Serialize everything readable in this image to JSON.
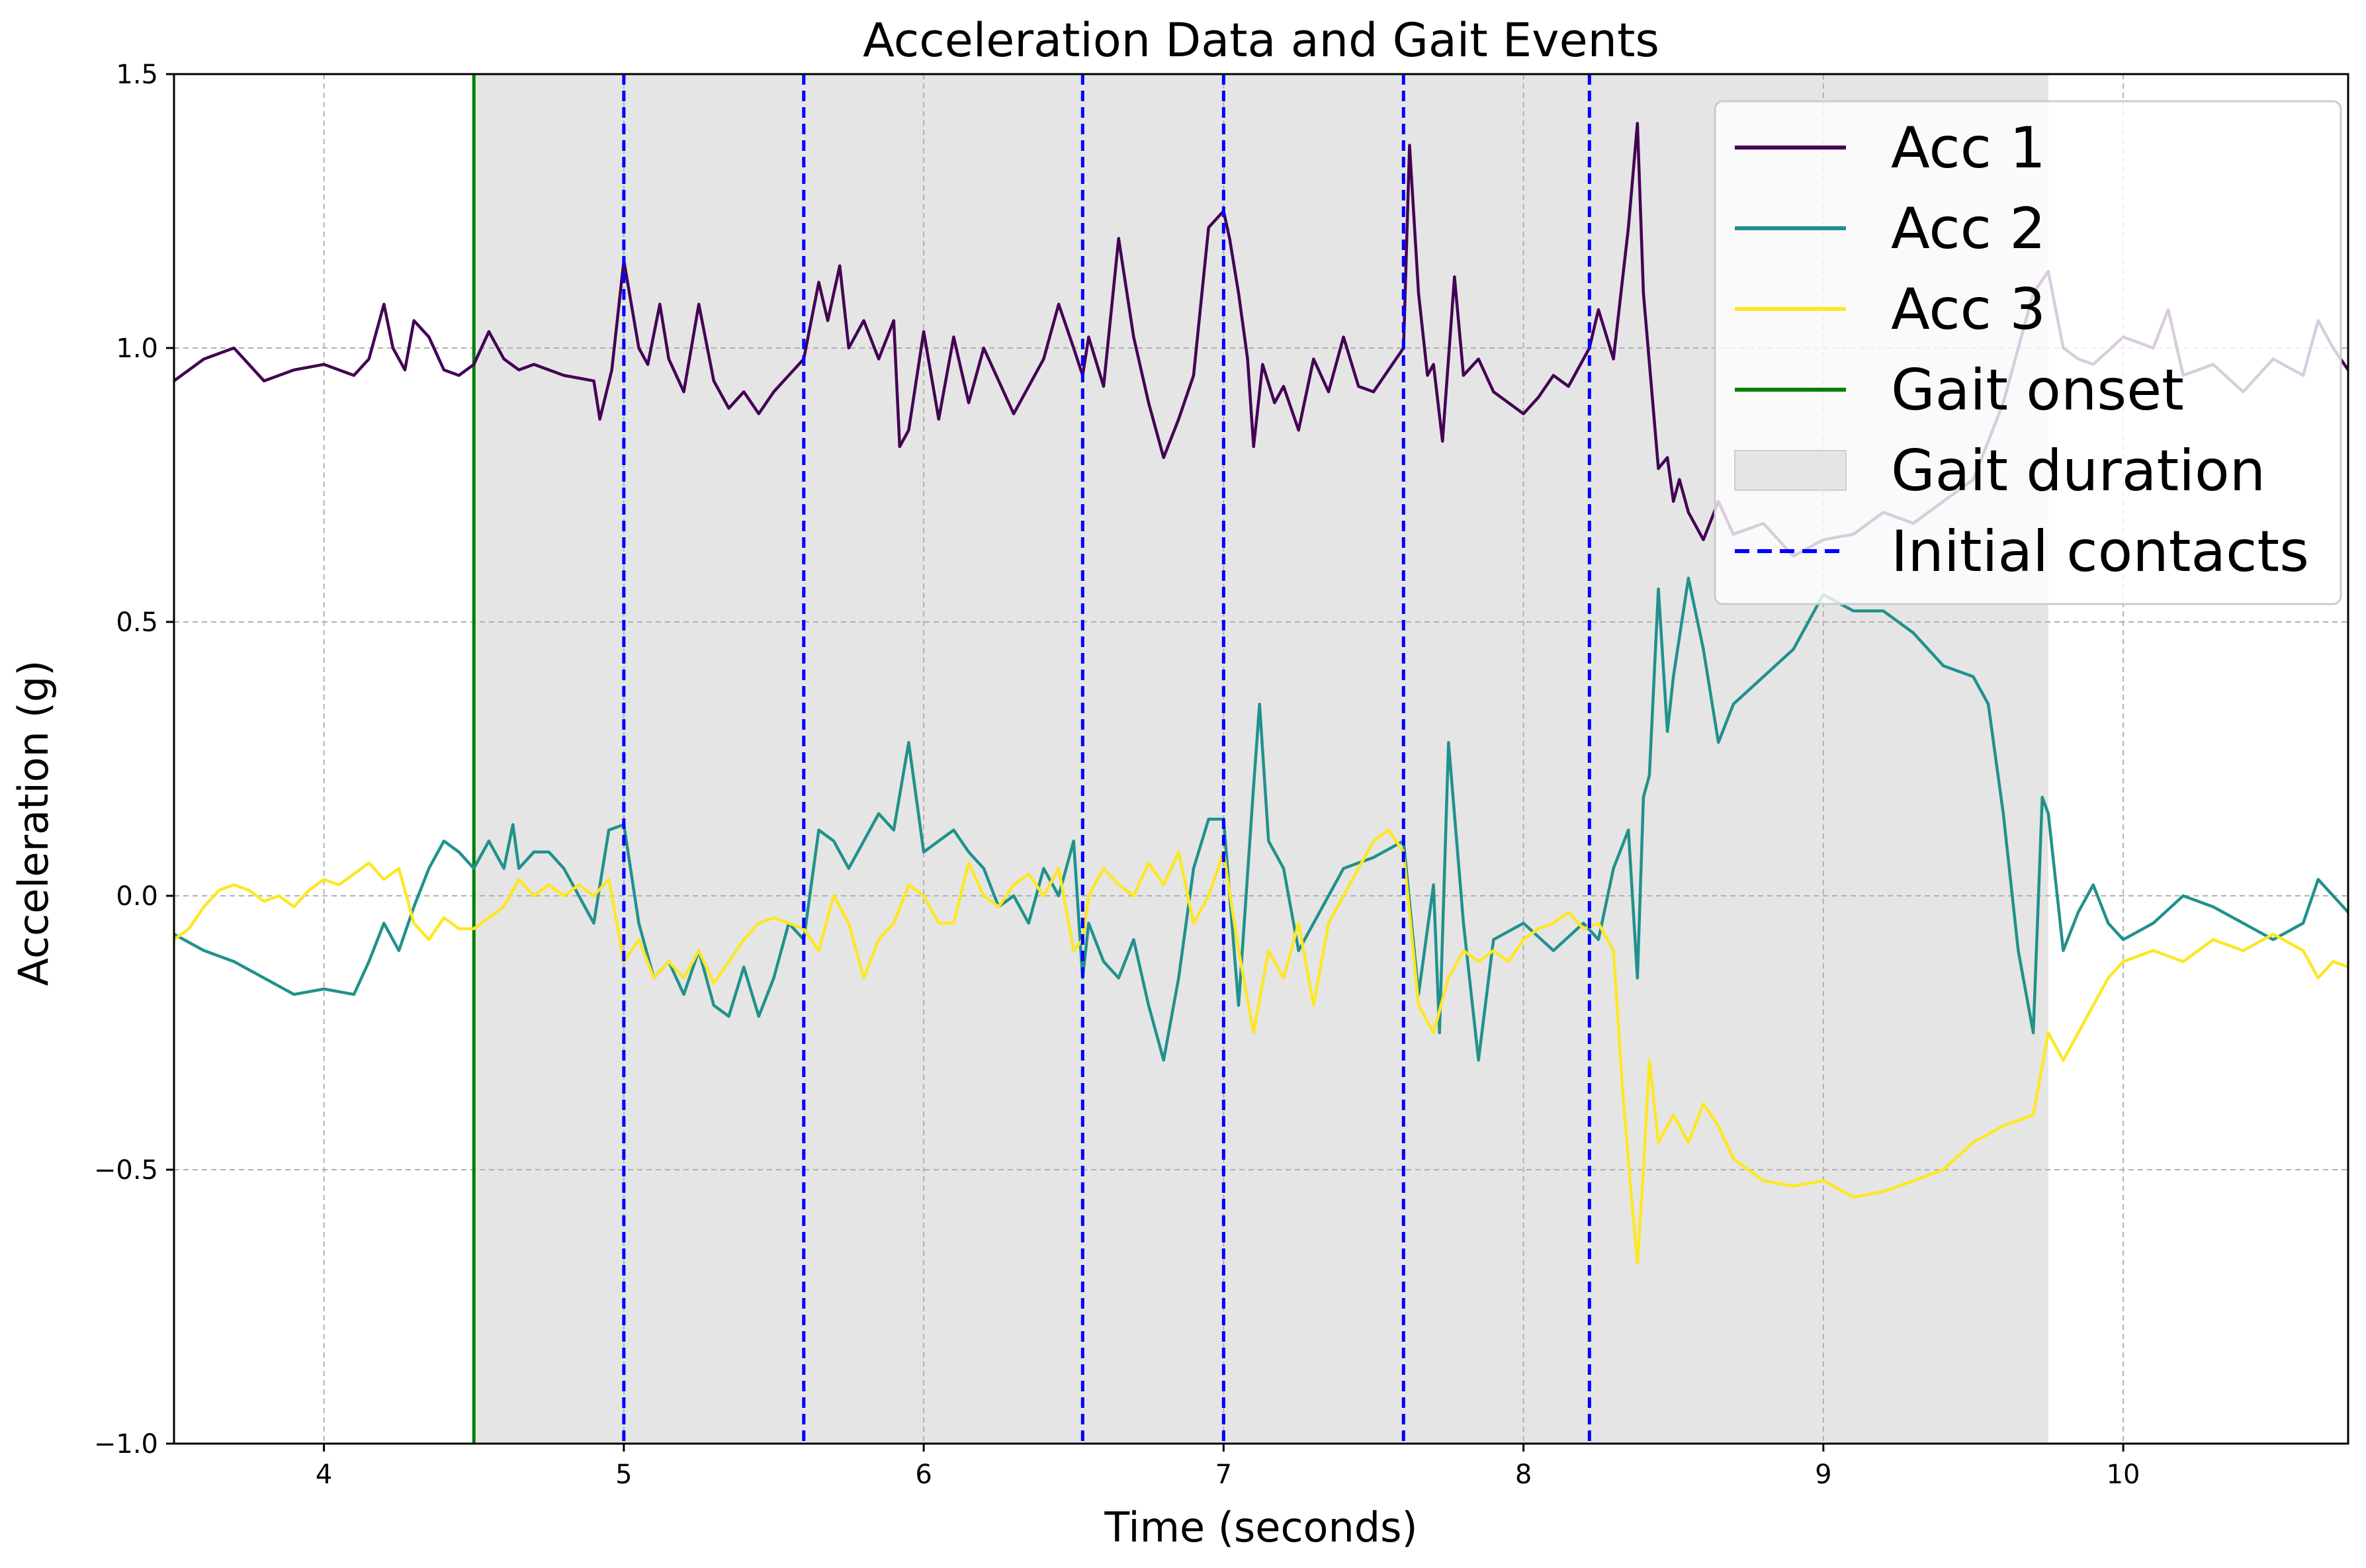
{
  "chart_data": {
    "type": "line",
    "title": "Acceleration Data and Gait Events",
    "xlabel": "Time (seconds)",
    "ylabel": "Acceleration (g)",
    "xlim": [
      3.5,
      10.75
    ],
    "ylim": [
      -1.0,
      1.5
    ],
    "xticks": [
      4,
      5,
      6,
      7,
      8,
      9,
      10
    ],
    "xtick_labels": [
      "4",
      "5",
      "6",
      "7",
      "8",
      "9",
      "10"
    ],
    "yticks": [
      -1.0,
      -0.5,
      0.0,
      0.5,
      1.0,
      1.5
    ],
    "ytick_labels": [
      "−1.0",
      "−0.5",
      "0.0",
      "0.5",
      "1.0",
      "1.5"
    ],
    "grid": true,
    "legend_position": "top-right",
    "gait_onset": 4.5,
    "gait_duration": [
      4.5,
      9.75
    ],
    "initial_contacts": [
      5.0,
      5.6,
      6.53,
      7.0,
      7.6,
      8.22
    ],
    "legend": {
      "acc1": "Acc 1",
      "acc2": "Acc 2",
      "acc3": "Acc 3",
      "onset": "Gait onset",
      "duration": "Gait duration",
      "contacts": "Initial contacts"
    },
    "colors": {
      "acc1": "#440154",
      "acc2": "#21918c",
      "acc3": "#fde725",
      "onset": "#008000",
      "contacts": "#0000ff",
      "shade": "#e5e5e5"
    },
    "series": [
      {
        "name": "Acc 1",
        "x": [
          3.5,
          3.6,
          3.7,
          3.8,
          3.9,
          4.0,
          4.1,
          4.15,
          4.2,
          4.23,
          4.27,
          4.3,
          4.35,
          4.4,
          4.45,
          4.5,
          4.55,
          4.6,
          4.65,
          4.7,
          4.8,
          4.9,
          4.92,
          4.96,
          5.0,
          5.05,
          5.08,
          5.12,
          5.15,
          5.2,
          5.25,
          5.3,
          5.35,
          5.4,
          5.45,
          5.5,
          5.55,
          5.6,
          5.65,
          5.68,
          5.72,
          5.75,
          5.8,
          5.85,
          5.9,
          5.92,
          5.95,
          6.0,
          6.05,
          6.1,
          6.15,
          6.2,
          6.3,
          6.4,
          6.45,
          6.5,
          6.53,
          6.55,
          6.6,
          6.65,
          6.7,
          6.75,
          6.8,
          6.85,
          6.9,
          6.95,
          7.0,
          7.02,
          7.05,
          7.08,
          7.1,
          7.13,
          7.17,
          7.2,
          7.25,
          7.3,
          7.35,
          7.4,
          7.45,
          7.5,
          7.6,
          7.62,
          7.65,
          7.68,
          7.7,
          7.73,
          7.77,
          7.8,
          7.85,
          7.9,
          8.0,
          8.05,
          8.1,
          8.15,
          8.22,
          8.25,
          8.3,
          8.35,
          8.38,
          8.4,
          8.45,
          8.48,
          8.5,
          8.52,
          8.55,
          8.6,
          8.65,
          8.7,
          8.8,
          8.9,
          9.0,
          9.1,
          9.2,
          9.3,
          9.4,
          9.5,
          9.6,
          9.7,
          9.75,
          9.8,
          9.85,
          9.9,
          10.0,
          10.1,
          10.15,
          10.2,
          10.3,
          10.4,
          10.5,
          10.6,
          10.65,
          10.7,
          10.75
        ],
        "y": [
          0.94,
          0.98,
          1.0,
          0.94,
          0.96,
          0.97,
          0.95,
          0.98,
          1.08,
          1.0,
          0.96,
          1.05,
          1.02,
          0.96,
          0.95,
          0.97,
          1.03,
          0.98,
          0.96,
          0.97,
          0.95,
          0.94,
          0.87,
          0.96,
          1.16,
          1.0,
          0.97,
          1.08,
          0.98,
          0.92,
          1.08,
          0.94,
          0.89,
          0.92,
          0.88,
          0.92,
          0.95,
          0.98,
          1.12,
          1.05,
          1.15,
          1.0,
          1.05,
          0.98,
          1.05,
          0.82,
          0.85,
          1.03,
          0.87,
          1.02,
          0.9,
          1.0,
          0.88,
          0.98,
          1.08,
          1.0,
          0.95,
          1.02,
          0.93,
          1.2,
          1.02,
          0.9,
          0.8,
          0.87,
          0.95,
          1.22,
          1.25,
          1.2,
          1.1,
          0.98,
          0.82,
          0.97,
          0.9,
          0.93,
          0.85,
          0.98,
          0.92,
          1.02,
          0.93,
          0.92,
          1.0,
          1.37,
          1.1,
          0.95,
          0.97,
          0.83,
          1.13,
          0.95,
          0.98,
          0.92,
          0.88,
          0.91,
          0.95,
          0.93,
          1.0,
          1.07,
          0.98,
          1.22,
          1.41,
          1.1,
          0.78,
          0.8,
          0.72,
          0.76,
          0.7,
          0.65,
          0.72,
          0.66,
          0.68,
          0.62,
          0.65,
          0.66,
          0.7,
          0.68,
          0.72,
          0.76,
          0.9,
          1.1,
          1.14,
          1.0,
          0.98,
          0.97,
          1.02,
          1.0,
          1.07,
          0.95,
          0.97,
          0.92,
          0.98,
          0.95,
          1.05,
          1.0,
          0.96
        ]
      },
      {
        "name": "Acc 2",
        "x": [
          3.5,
          3.6,
          3.7,
          3.8,
          3.9,
          4.0,
          4.1,
          4.15,
          4.2,
          4.25,
          4.3,
          4.35,
          4.4,
          4.45,
          4.5,
          4.55,
          4.6,
          4.63,
          4.65,
          4.7,
          4.75,
          4.8,
          4.85,
          4.9,
          4.95,
          5.0,
          5.05,
          5.1,
          5.15,
          5.2,
          5.25,
          5.3,
          5.35,
          5.4,
          5.45,
          5.5,
          5.55,
          5.6,
          5.65,
          5.7,
          5.75,
          5.8,
          5.85,
          5.9,
          5.95,
          6.0,
          6.05,
          6.1,
          6.15,
          6.2,
          6.25,
          6.3,
          6.35,
          6.4,
          6.45,
          6.5,
          6.53,
          6.55,
          6.6,
          6.65,
          6.7,
          6.75,
          6.8,
          6.85,
          6.9,
          6.95,
          7.0,
          7.05,
          7.1,
          7.12,
          7.15,
          7.2,
          7.25,
          7.3,
          7.35,
          7.4,
          7.45,
          7.5,
          7.6,
          7.65,
          7.7,
          7.72,
          7.75,
          7.8,
          7.85,
          7.9,
          8.0,
          8.1,
          8.2,
          8.25,
          8.3,
          8.35,
          8.38,
          8.4,
          8.42,
          8.45,
          8.48,
          8.5,
          8.55,
          8.6,
          8.65,
          8.7,
          8.8,
          8.9,
          9.0,
          9.1,
          9.2,
          9.3,
          9.4,
          9.5,
          9.55,
          9.6,
          9.65,
          9.7,
          9.73,
          9.75,
          9.8,
          9.85,
          9.9,
          9.95,
          10.0,
          10.1,
          10.2,
          10.3,
          10.4,
          10.5,
          10.6,
          10.65,
          10.7,
          10.75
        ],
        "y": [
          -0.07,
          -0.1,
          -0.12,
          -0.15,
          -0.18,
          -0.17,
          -0.18,
          -0.12,
          -0.05,
          -0.1,
          -0.02,
          0.05,
          0.1,
          0.08,
          0.05,
          0.1,
          0.05,
          0.13,
          0.05,
          0.08,
          0.08,
          0.05,
          0.0,
          -0.05,
          0.12,
          0.13,
          -0.05,
          -0.15,
          -0.12,
          -0.18,
          -0.1,
          -0.2,
          -0.22,
          -0.13,
          -0.22,
          -0.15,
          -0.05,
          -0.08,
          0.12,
          0.1,
          0.05,
          0.1,
          0.15,
          0.12,
          0.28,
          0.08,
          0.1,
          0.12,
          0.08,
          0.05,
          -0.02,
          0.0,
          -0.05,
          0.05,
          0.0,
          0.1,
          -0.15,
          -0.05,
          -0.12,
          -0.15,
          -0.08,
          -0.2,
          -0.3,
          -0.15,
          0.05,
          0.14,
          0.14,
          -0.2,
          0.2,
          0.35,
          0.1,
          0.05,
          -0.1,
          -0.05,
          0.0,
          0.05,
          0.06,
          0.07,
          0.1,
          -0.18,
          0.02,
          -0.25,
          0.28,
          -0.05,
          -0.3,
          -0.08,
          -0.05,
          -0.1,
          -0.05,
          -0.08,
          0.05,
          0.12,
          -0.15,
          0.18,
          0.22,
          0.56,
          0.3,
          0.4,
          0.58,
          0.45,
          0.28,
          0.35,
          0.4,
          0.45,
          0.55,
          0.52,
          0.52,
          0.48,
          0.42,
          0.4,
          0.35,
          0.15,
          -0.1,
          -0.25,
          0.18,
          0.15,
          -0.1,
          -0.03,
          0.02,
          -0.05,
          -0.08,
          -0.05,
          0.0,
          -0.02,
          -0.05,
          -0.08,
          -0.05,
          0.03,
          0.0,
          -0.03
        ]
      },
      {
        "name": "Acc 3",
        "x": [
          3.5,
          3.55,
          3.6,
          3.65,
          3.7,
          3.75,
          3.8,
          3.85,
          3.9,
          3.95,
          4.0,
          4.05,
          4.1,
          4.15,
          4.2,
          4.25,
          4.3,
          4.35,
          4.4,
          4.45,
          4.5,
          4.55,
          4.6,
          4.65,
          4.7,
          4.75,
          4.8,
          4.85,
          4.9,
          4.95,
          5.0,
          5.05,
          5.1,
          5.15,
          5.2,
          5.25,
          5.3,
          5.35,
          5.4,
          5.45,
          5.5,
          5.55,
          5.6,
          5.65,
          5.7,
          5.75,
          5.8,
          5.85,
          5.9,
          5.95,
          6.0,
          6.05,
          6.1,
          6.15,
          6.2,
          6.25,
          6.3,
          6.35,
          6.4,
          6.45,
          6.5,
          6.53,
          6.55,
          6.6,
          6.65,
          6.7,
          6.75,
          6.8,
          6.85,
          6.9,
          6.95,
          7.0,
          7.05,
          7.1,
          7.15,
          7.2,
          7.25,
          7.3,
          7.35,
          7.4,
          7.45,
          7.5,
          7.55,
          7.6,
          7.65,
          7.7,
          7.75,
          7.8,
          7.85,
          7.9,
          7.95,
          8.0,
          8.05,
          8.1,
          8.15,
          8.2,
          8.25,
          8.3,
          8.33,
          8.36,
          8.38,
          8.4,
          8.42,
          8.45,
          8.5,
          8.55,
          8.6,
          8.65,
          8.7,
          8.8,
          8.9,
          9.0,
          9.1,
          9.2,
          9.3,
          9.4,
          9.5,
          9.6,
          9.7,
          9.75,
          9.8,
          9.85,
          9.9,
          9.95,
          10.0,
          10.1,
          10.2,
          10.3,
          10.4,
          10.5,
          10.6,
          10.65,
          10.7,
          10.75
        ],
        "y": [
          -0.08,
          -0.06,
          -0.02,
          0.01,
          0.02,
          0.01,
          -0.01,
          0.0,
          -0.02,
          0.01,
          0.03,
          0.02,
          0.04,
          0.06,
          0.03,
          0.05,
          -0.05,
          -0.08,
          -0.04,
          -0.06,
          -0.06,
          -0.04,
          -0.02,
          0.03,
          0.0,
          0.02,
          0.0,
          0.02,
          0.0,
          0.03,
          -0.12,
          -0.08,
          -0.15,
          -0.12,
          -0.15,
          -0.1,
          -0.16,
          -0.12,
          -0.08,
          -0.05,
          -0.04,
          -0.05,
          -0.06,
          -0.1,
          0.0,
          -0.05,
          -0.15,
          -0.08,
          -0.05,
          0.02,
          0.0,
          -0.05,
          -0.05,
          0.06,
          0.0,
          -0.02,
          0.02,
          0.04,
          0.0,
          0.05,
          -0.1,
          -0.08,
          0.0,
          0.05,
          0.02,
          0.0,
          0.06,
          0.02,
          0.08,
          -0.05,
          0.0,
          0.08,
          -0.1,
          -0.25,
          -0.1,
          -0.15,
          -0.05,
          -0.2,
          -0.05,
          0.0,
          0.05,
          0.1,
          0.12,
          0.08,
          -0.2,
          -0.25,
          -0.15,
          -0.1,
          -0.12,
          -0.1,
          -0.12,
          -0.08,
          -0.06,
          -0.05,
          -0.03,
          -0.06,
          -0.05,
          -0.1,
          -0.35,
          -0.55,
          -0.67,
          -0.5,
          -0.3,
          -0.45,
          -0.4,
          -0.45,
          -0.38,
          -0.42,
          -0.48,
          -0.52,
          -0.53,
          -0.52,
          -0.55,
          -0.54,
          -0.52,
          -0.5,
          -0.45,
          -0.42,
          -0.4,
          -0.25,
          -0.3,
          -0.25,
          -0.2,
          -0.15,
          -0.12,
          -0.1,
          -0.12,
          -0.08,
          -0.1,
          -0.07,
          -0.1,
          -0.15,
          -0.12,
          -0.13
        ]
      }
    ]
  }
}
